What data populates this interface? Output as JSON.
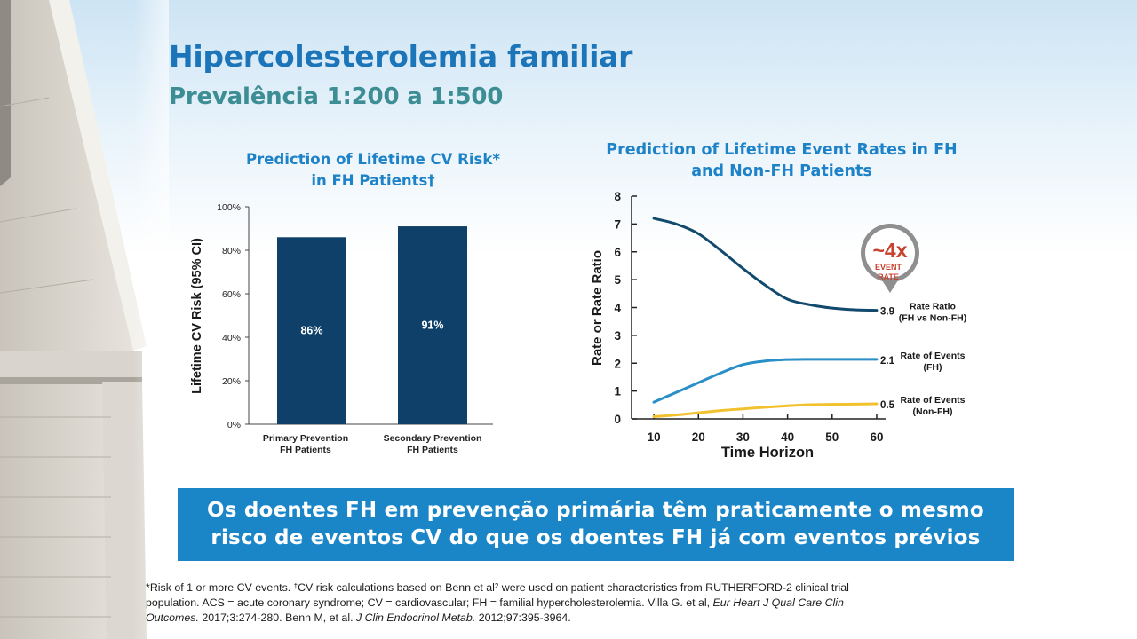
{
  "slide": {
    "title": "Hipercolesterolemia familiar",
    "subtitle": "Prevalência 1:200 a 1:500"
  },
  "banner": {
    "line1": "Os doentes FH em prevenção primária têm praticamente o mesmo",
    "line2": "risco de eventos CV do que os doentes FH já com eventos prévios"
  },
  "footnote": {
    "p1": "*Risk of 1 or more CV events. ",
    "dagger": "†",
    "p2": "CV risk calculations based on Benn et al",
    "ref": "2",
    "p3": " were used on patient characteristics from RUTHERFORD-2 clinical trial population. ACS = acute coronary syndrome; CV = cardiovascular; FH = familial hypercholesterolemia. Villa G. et al, ",
    "journal1": "Eur Heart J Qual Care Clin Outcomes.",
    "p4": " 2017;3:274-280. Benn M, et al. ",
    "journal2": "J Clin Endocrinol Metab.",
    "p5": " 2012;97:395-3964."
  },
  "chart_data": [
    {
      "type": "bar",
      "title_line1": "Prediction of Lifetime CV Risk*",
      "title_line2": "in FH Patients†",
      "ylabel": "Lifetime CV Risk (95% CI)",
      "ylim": [
        0,
        100
      ],
      "yticks": [
        "0%",
        "20%",
        "40%",
        "60%",
        "80%",
        "100%"
      ],
      "categories": [
        [
          "Primary Prevention",
          "FH Patients"
        ],
        [
          "Secondary Prevention",
          "FH Patients"
        ]
      ],
      "values": [
        86,
        91
      ],
      "value_labels": [
        "86%",
        "91%"
      ],
      "colors": {
        "bar": "#0e4069",
        "bar_label": "#ffffff",
        "axis": "#444444"
      }
    },
    {
      "type": "line",
      "title_line1": "Prediction of Lifetime Event Rates in FH",
      "title_line2": "and Non-FH Patients",
      "xlabel": "Time Horizon",
      "ylabel": "Rate or Rate Ratio",
      "xlim": [
        5,
        62
      ],
      "ylim": [
        0,
        8
      ],
      "xticks": [
        10,
        20,
        30,
        40,
        50,
        60
      ],
      "yticks": [
        0,
        1,
        2,
        3,
        4,
        5,
        6,
        7,
        8
      ],
      "series": [
        {
          "key": "ratio",
          "color": "#124a6e",
          "x": [
            10,
            15,
            20,
            25,
            30,
            35,
            40,
            45,
            50,
            55,
            60
          ],
          "y": [
            7.2,
            7.0,
            6.65,
            6.05,
            5.4,
            4.8,
            4.3,
            4.1,
            3.98,
            3.92,
            3.9
          ],
          "end_value": "3.9",
          "label_line1": "Rate Ratio",
          "label_line2": "(FH vs Non-FH)"
        },
        {
          "key": "fh",
          "color": "#2b8fc7",
          "x": [
            10,
            15,
            20,
            25,
            30,
            35,
            40,
            45,
            50,
            55,
            60
          ],
          "y": [
            0.6,
            0.95,
            1.3,
            1.65,
            1.95,
            2.08,
            2.13,
            2.14,
            2.14,
            2.14,
            2.14
          ],
          "end_value": "2.1",
          "label_line1": "Rate of Events",
          "label_line2": "(FH)"
        },
        {
          "key": "nonfh",
          "color": "#f2c12e",
          "x": [
            10,
            15,
            20,
            25,
            30,
            35,
            40,
            45,
            50,
            55,
            60
          ],
          "y": [
            0.08,
            0.14,
            0.22,
            0.3,
            0.36,
            0.42,
            0.47,
            0.51,
            0.52,
            0.53,
            0.54
          ],
          "end_value": "0.5",
          "label_line1": "Rate of Events",
          "label_line2": "(Non-FH)"
        }
      ],
      "callout": {
        "value": "~4x",
        "line1": "EVENT",
        "line2": "RATE",
        "color": "#c8402e",
        "ring": "#8a8a8a"
      }
    }
  ]
}
